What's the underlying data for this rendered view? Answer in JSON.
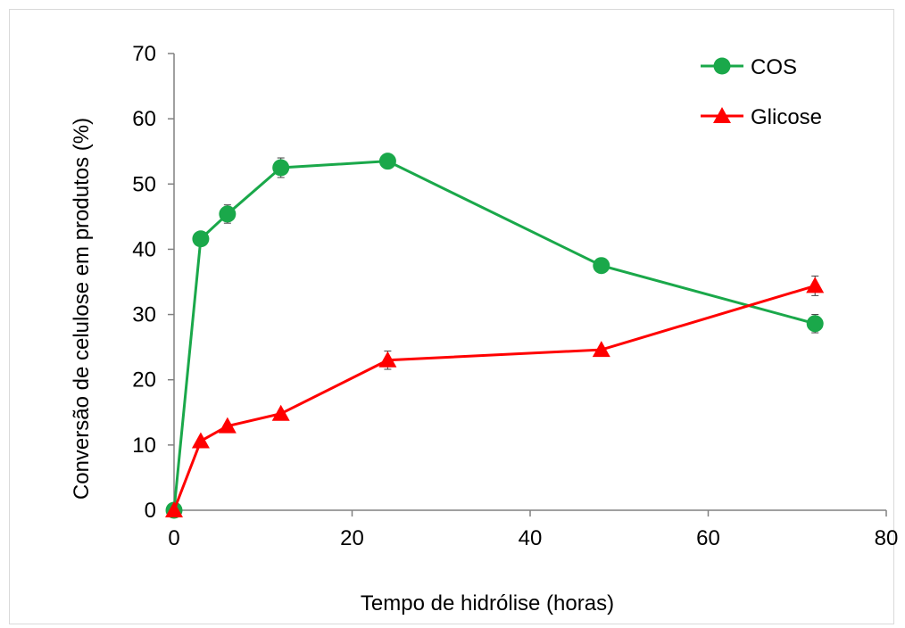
{
  "chart_data": {
    "type": "line",
    "title": "",
    "xlabel": "Tempo de hidrólise (horas)",
    "ylabel": "Conversão de celulose em produtos (%)",
    "xlim": [
      0,
      80
    ],
    "ylim": [
      0,
      70
    ],
    "xticks": [
      0,
      20,
      40,
      60,
      80
    ],
    "yticks": [
      0,
      10,
      20,
      30,
      40,
      50,
      60,
      70
    ],
    "x": [
      0,
      3,
      6,
      12,
      24,
      48,
      72
    ],
    "grid": false,
    "legend_position": "top-right",
    "series": [
      {
        "name": "COS",
        "color": "#1aa84a",
        "marker": "circle",
        "values": [
          0,
          41.6,
          45.4,
          52.5,
          53.5,
          37.5,
          28.6
        ],
        "errors": [
          0,
          0,
          1.4,
          1.5,
          0,
          0,
          1.4
        ]
      },
      {
        "name": "Glicose",
        "color": "#ff0000",
        "marker": "triangle",
        "values": [
          0,
          10.6,
          12.9,
          14.8,
          23.0,
          24.6,
          34.4
        ],
        "errors": [
          0,
          0,
          0,
          0,
          1.4,
          0,
          1.5
        ]
      }
    ]
  }
}
